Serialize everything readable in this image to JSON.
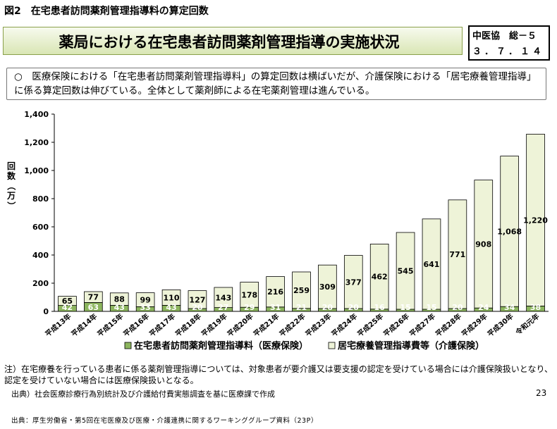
{
  "figure_label": "図2　在宅患者訪問薬剤管理指導料の算定回数",
  "main_title": "薬局における在宅患者訪問薬剤管理指導の実施状況",
  "doc_id": "中医協　総－５",
  "doc_date": "３．７．１４",
  "summary": "○　医療保険における「在宅患者訪問薬剤管理指導料」の算定回数は横ばいだが、介護保険における「居宅療養管理指導」に係る算定回数は伸びている。全体として薬剤師による在宅薬剤管理は進んでいる。",
  "footnote": "注）在宅療養を行っている患者に係る薬剤管理指導については、対象患者が要介護又は要支援の認定を受けている場合には介護保険扱いとなり、認定を受けていない場合には医療保険扱いとなる。",
  "source": "出典）社会医療診療行為別統計及び介護給付費実態調査を基に医療課で作成",
  "page_number": "23",
  "bottom_source": "出典：厚生労働省・第5回在宅医療及び医療・介護連携に関するワーキンググループ資料（23P）",
  "colors": {
    "medical": "#8cb55e",
    "care": "#eef3d8",
    "title_border": "#8aa04a"
  },
  "chart_data": {
    "type": "bar",
    "stacked": true,
    "categories": [
      "平成13年",
      "平成14年",
      "平成15年",
      "平成16年",
      "平成17年",
      "平成18年",
      "平成19年",
      "平成20年",
      "平成21年",
      "平成22年",
      "平成23年",
      "平成24年",
      "平成25年",
      "平成26年",
      "平成27年",
      "平成28年",
      "平成29年",
      "平成30年",
      "令和元年"
    ],
    "series": [
      {
        "name": "在宅患者訪問薬剤管理指導料（医療保険）",
        "values": [
          42,
          63,
          43,
          33,
          43,
          20,
          27,
          29,
          31,
          21,
          20,
          20,
          16,
          15,
          15,
          20,
          24,
          34,
          38
        ]
      },
      {
        "name": "居宅療養管理指導費等（介護保険）",
        "values": [
          65,
          77,
          88,
          99,
          110,
          127,
          143,
          178,
          216,
          259,
          309,
          377,
          462,
          545,
          641,
          771,
          908,
          1068,
          1220
        ]
      }
    ],
    "ylabel": "回数（万）",
    "ylim": [
      0,
      1400
    ],
    "yticks": [
      "0",
      "200",
      "400",
      "600",
      "800",
      "1,000",
      "1,200",
      "1,400"
    ],
    "grid": false,
    "legend_position": "bottom"
  }
}
